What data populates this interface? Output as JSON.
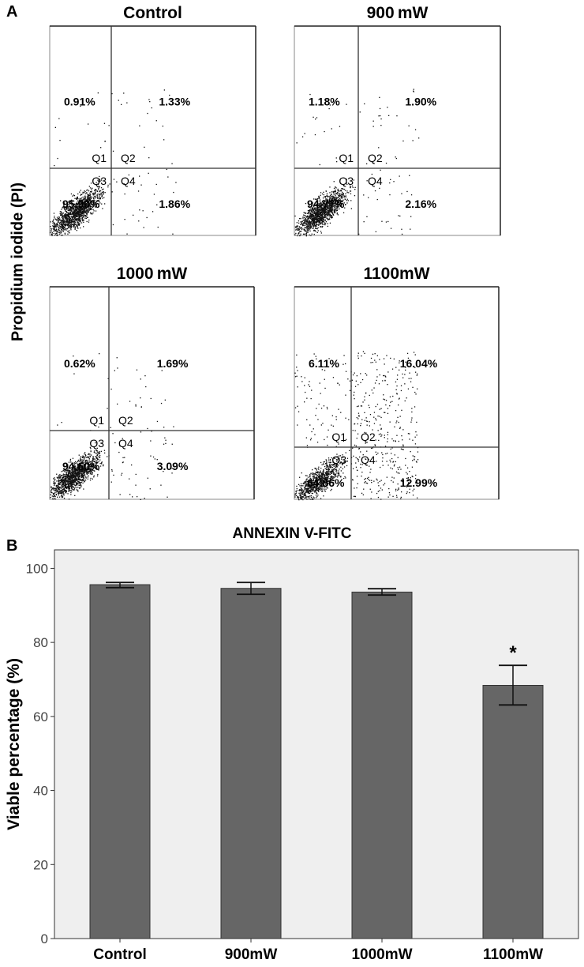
{
  "panel_a": {
    "letter": "A",
    "ylabel": "Propidium iodide (PI)",
    "xlabel": "ANNEXIN V-FITC",
    "quadrant_names": [
      "Q1",
      "Q2",
      "Q3",
      "Q4"
    ],
    "plots": [
      {
        "title": "Control",
        "q1": "0.91%",
        "q2": "1.33%",
        "q3": "95.90%",
        "q4": "1.86%"
      },
      {
        "title": "900 mW",
        "q1": "1.18%",
        "q2": "1.90%",
        "q3": "94.77%",
        "q4": "2.16%"
      },
      {
        "title": "1000 mW",
        "q1": "0.62%",
        "q2": "1.69%",
        "q3": "94.60%",
        "q4": "3.09%"
      },
      {
        "title": "1100mW",
        "q1": "6.11%",
        "q2": "16.04%",
        "q3": "64.86%",
        "q4": "12.99%"
      }
    ]
  },
  "chart_data": {
    "type": "bar",
    "panel_letter": "B",
    "categories": [
      "Control",
      "900mW",
      "1000mW",
      "1100mW"
    ],
    "values": [
      95.6,
      94.6,
      93.6,
      68.4
    ],
    "error_low": [
      94.8,
      93.0,
      92.8,
      63.1
    ],
    "error_high": [
      96.2,
      96.2,
      94.5,
      73.8
    ],
    "annotations": [
      "",
      "",
      "",
      "*"
    ],
    "xlabel": "",
    "ylabel": "Viable percentage (%)",
    "ylim": [
      0,
      105
    ],
    "yticks": [
      "0",
      "20",
      "40",
      "60",
      "80",
      "100"
    ],
    "grid": false,
    "colors": {
      "bar": "#666666",
      "background": "#efefef"
    }
  }
}
